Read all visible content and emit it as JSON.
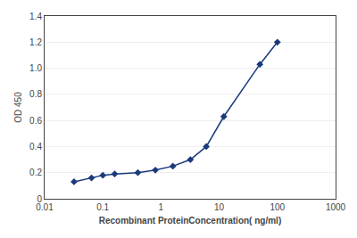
{
  "chart_data": {
    "type": "line",
    "x": [
      0.032,
      0.064,
      0.1,
      0.16,
      0.4,
      0.8,
      1.6,
      3.2,
      6,
      12,
      50,
      100
    ],
    "values": [
      0.13,
      0.16,
      0.18,
      0.19,
      0.2,
      0.22,
      0.25,
      0.3,
      0.4,
      0.63,
      1.03,
      1.2
    ],
    "xlim": [
      0.01,
      1000
    ],
    "ylim": [
      0,
      1.4
    ],
    "xticks": [
      0.01,
      0.1,
      1,
      10,
      100,
      1000
    ],
    "yticks": [
      0,
      0.2,
      0.4,
      0.6,
      0.8,
      {
        "value": 1.0,
        "label": "1.0"
      },
      1.2,
      1.4
    ],
    "xlabel": "Recombinant ProteinConcentration( ng/ml)",
    "ylabel": "OD 450",
    "log": "x",
    "grid": "y",
    "color": "#1a3a7c",
    "marker": "diamond",
    "line_style": "solid"
  }
}
